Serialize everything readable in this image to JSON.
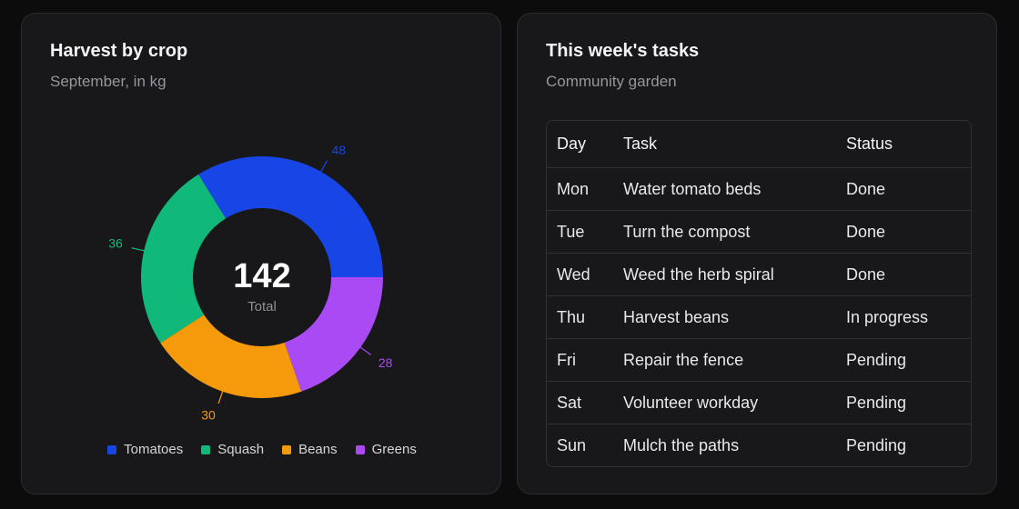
{
  "left_card": {
    "title": "Harvest by crop",
    "subtitle": "September, in kg"
  },
  "chart_data": {
    "type": "donut",
    "title": "Harvest by crop",
    "subtitle": "September, in kg",
    "center_value": "142",
    "center_label": "Total",
    "legend_position": "bottom",
    "series": [
      {
        "name": "Tomatoes",
        "value": 48,
        "color": "#1745e6"
      },
      {
        "name": "Squash",
        "value": 36,
        "color": "#10b97a"
      },
      {
        "name": "Beans",
        "value": 30,
        "color": "#f59a0b"
      },
      {
        "name": "Greens",
        "value": 28,
        "color": "#a94af5"
      }
    ]
  },
  "right_card": {
    "title": "This week's tasks",
    "subtitle": "Community garden",
    "columns": [
      "Day",
      "Task",
      "Status"
    ],
    "rows": [
      {
        "day": "Mon",
        "task": "Water tomato beds",
        "status": "Done"
      },
      {
        "day": "Tue",
        "task": "Turn the compost",
        "status": "Done"
      },
      {
        "day": "Wed",
        "task": "Weed the herb spiral",
        "status": "Done"
      },
      {
        "day": "Thu",
        "task": "Harvest beans",
        "status": "In progress"
      },
      {
        "day": "Fri",
        "task": "Repair the fence",
        "status": "Pending"
      },
      {
        "day": "Sat",
        "task": "Volunteer workday",
        "status": "Pending"
      },
      {
        "day": "Sun",
        "task": "Mulch the paths",
        "status": "Pending"
      }
    ]
  }
}
